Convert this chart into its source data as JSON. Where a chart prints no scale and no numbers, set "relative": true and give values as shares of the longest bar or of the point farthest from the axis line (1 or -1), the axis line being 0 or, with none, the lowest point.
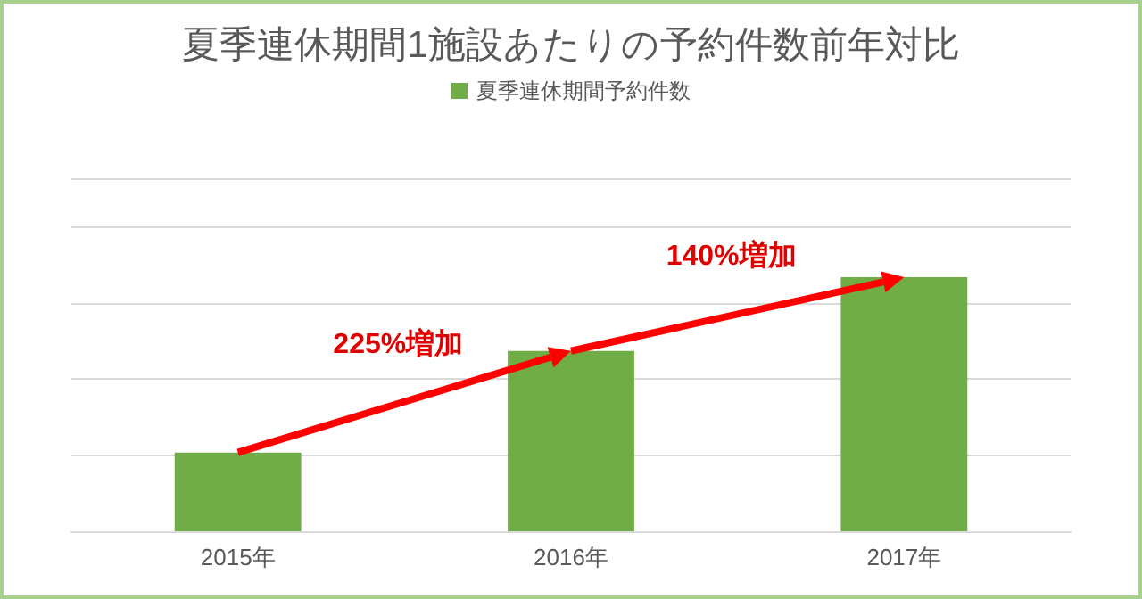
{
  "chart_data": {
    "type": "bar",
    "title": "夏季連休期間1施設あたりの予約件数前年対比",
    "categories": [
      "2015年",
      "2016年",
      "2017年"
    ],
    "series": [
      {
        "name": "夏季連休期間予約件数",
        "color": "#70ad47",
        "values": [
          0.31,
          0.71,
          1
        ]
      }
    ],
    "relative": true,
    "grid": "y",
    "legend": "top",
    "annotations": [
      "225%増加",
      "140%増加"
    ]
  }
}
